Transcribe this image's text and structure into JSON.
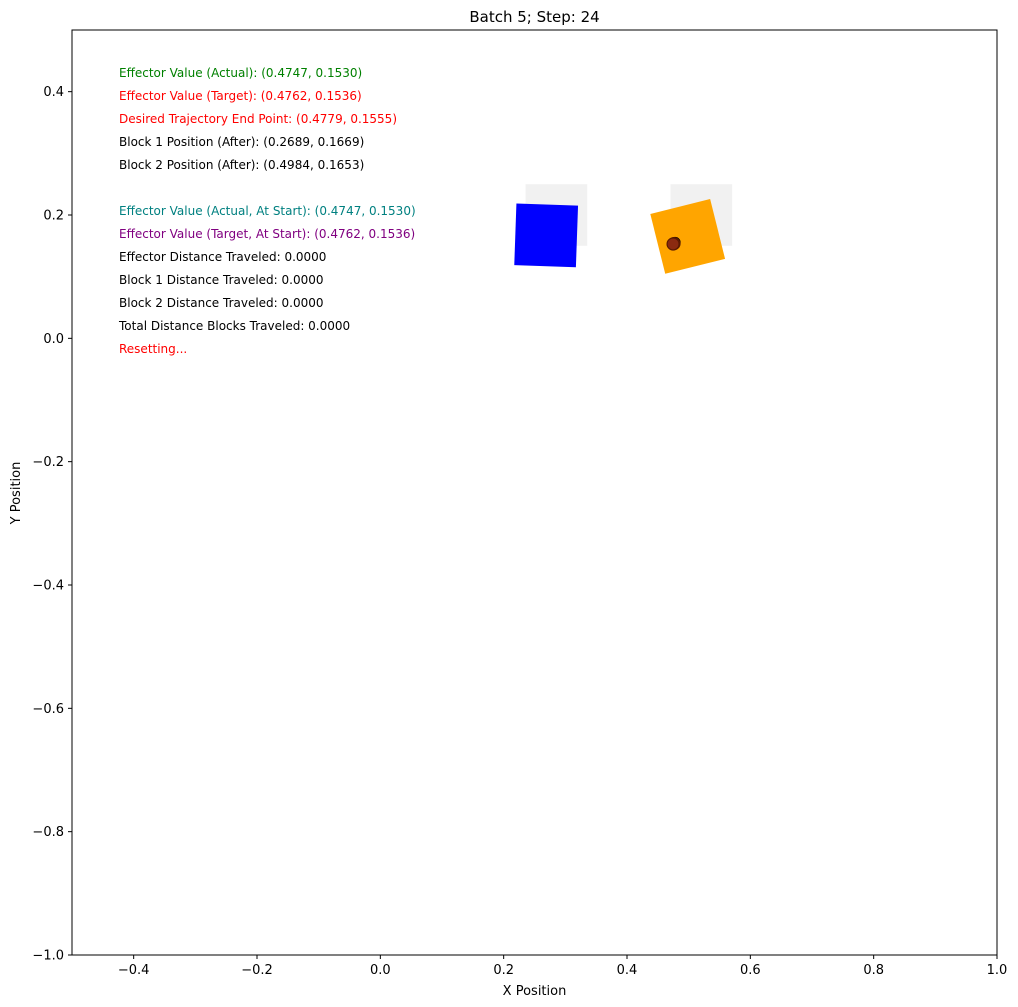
{
  "chart_data": {
    "type": "scatter",
    "title": "Batch 5; Step: 24",
    "xlabel": "X Position",
    "ylabel": "Y Position",
    "xlim": [
      -0.5,
      1.0
    ],
    "ylim": [
      -1.0,
      0.5
    ],
    "xticks": [
      {
        "v": -0.4,
        "label": "−0.4"
      },
      {
        "v": -0.2,
        "label": "−0.2"
      },
      {
        "v": 0.0,
        "label": "0.0"
      },
      {
        "v": 0.2,
        "label": "0.2"
      },
      {
        "v": 0.4,
        "label": "0.4"
      },
      {
        "v": 0.6,
        "label": "0.6"
      },
      {
        "v": 0.8,
        "label": "0.8"
      },
      {
        "v": 1.0,
        "label": "1.0"
      }
    ],
    "yticks": [
      {
        "v": 0.4,
        "label": "0.4"
      },
      {
        "v": 0.2,
        "label": "0.2"
      },
      {
        "v": 0.0,
        "label": "0.0"
      },
      {
        "v": -0.2,
        "label": "−0.2"
      },
      {
        "v": -0.4,
        "label": "−0.4"
      },
      {
        "v": -0.6,
        "label": "−0.6"
      },
      {
        "v": -0.8,
        "label": "−0.8"
      },
      {
        "v": -1.0,
        "label": "−1.0"
      }
    ],
    "grid": false,
    "blocks": [
      {
        "name": "Block 1 start",
        "cx": 0.2855,
        "cy": 0.2,
        "size": 0.1,
        "angle": 0,
        "color": "#eeeeee",
        "opacity": 0.85
      },
      {
        "name": "Block 2 start",
        "cx": 0.5205,
        "cy": 0.2,
        "size": 0.1,
        "angle": 0,
        "color": "#eeeeee",
        "opacity": 0.85
      },
      {
        "name": "Block 1",
        "cx": 0.2689,
        "cy": 0.1669,
        "size": 0.1,
        "angle": 2,
        "color": "#0000ff",
        "opacity": 1
      },
      {
        "name": "Block 2",
        "cx": 0.4984,
        "cy": 0.1653,
        "size": 0.1,
        "angle": -14,
        "color": "#ffa500",
        "opacity": 1
      }
    ],
    "points": [
      {
        "name": "desired-trajectory-end-point",
        "x": 0.4779,
        "y": 0.1555,
        "r": 5,
        "fill": "#ffffff",
        "stroke": "#000000"
      },
      {
        "name": "effector-target",
        "x": 0.4762,
        "y": 0.1536,
        "r": 6,
        "fill": "#ff0000",
        "stroke": "#5a1a00"
      },
      {
        "name": "effector-actual",
        "x": 0.4747,
        "y": 0.153,
        "r": 6,
        "fill": "#8b2a10",
        "stroke": "#5a1a00"
      }
    ],
    "annotations": [
      {
        "text": "Effector Value (Actual): (0.4747, 0.1530)",
        "color": "#008000"
      },
      {
        "text": "Effector Value (Target): (0.4762, 0.1536)",
        "color": "#ff0000"
      },
      {
        "text": "Desired Trajectory End Point: (0.4779, 0.1555)",
        "color": "#ff0000"
      },
      {
        "text": "Block 1 Position (After): (0.2689, 0.1669)",
        "color": "#000000"
      },
      {
        "text": "Block 2 Position (After): (0.4984, 0.1653)",
        "color": "#000000"
      },
      {
        "text": "",
        "color": "#000000"
      },
      {
        "text": "Effector Value (Actual, At Start): (0.4747, 0.1530)",
        "color": "#008080"
      },
      {
        "text": "Effector Value (Target, At Start): (0.4762, 0.1536)",
        "color": "#800080"
      },
      {
        "text": "Effector Distance Traveled: 0.0000",
        "color": "#000000"
      },
      {
        "text": "Block 1 Distance Traveled: 0.0000",
        "color": "#000000"
      },
      {
        "text": "Block 2 Distance Traveled: 0.0000",
        "color": "#000000"
      },
      {
        "text": "Total Distance Blocks Traveled: 0.0000",
        "color": "#000000"
      },
      {
        "text": "Resetting...",
        "color": "#ff0000"
      }
    ]
  }
}
